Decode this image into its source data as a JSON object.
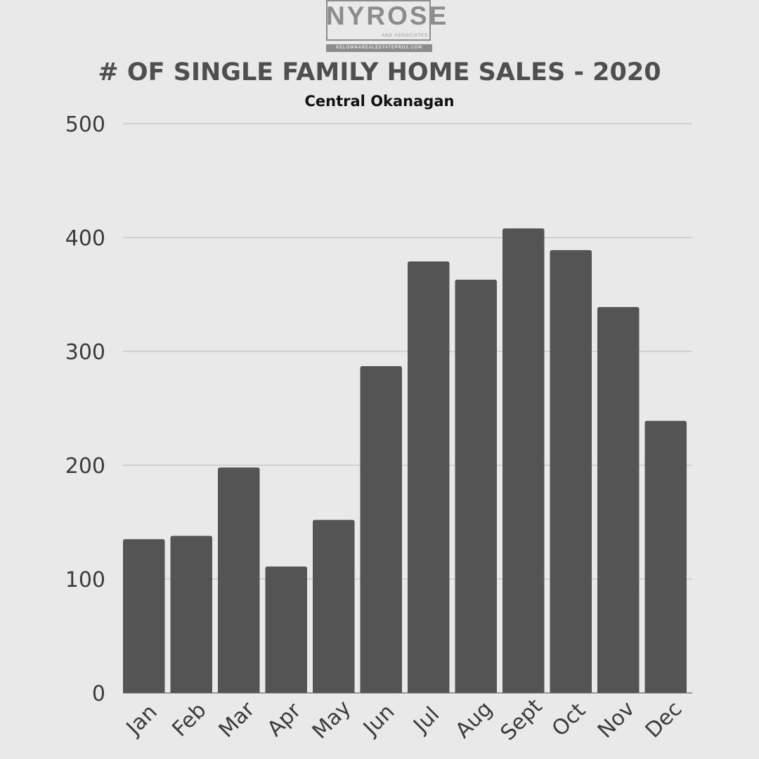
{
  "logo": {
    "name": "NYROSE",
    "tagline": "AND ASSOCIATES",
    "url": "KELOWNAREALESTATEPROS.COM"
  },
  "colors": {
    "background": "#e9e9e9",
    "bar": "#545454",
    "grid": "#c9c9c9",
    "title": "#4f4f4f",
    "subtitle": "#111111"
  },
  "chart_data": {
    "type": "bar",
    "title": "# OF SINGLE FAMILY HOME SALES - 2020",
    "subtitle": "Central Okanagan",
    "xlabel": "",
    "ylabel": "",
    "categories": [
      "Jan",
      "Feb",
      "Mar",
      "Apr",
      "May",
      "Jun",
      "Jul",
      "Aug",
      "Sept",
      "Oct",
      "Nov",
      "Dec"
    ],
    "values": [
      135,
      138,
      198,
      111,
      152,
      287,
      379,
      363,
      408,
      389,
      339,
      239
    ],
    "ylim": [
      0,
      500
    ],
    "yticks": [
      0,
      100,
      200,
      300,
      400,
      500
    ],
    "grid": true,
    "legend": "none"
  }
}
